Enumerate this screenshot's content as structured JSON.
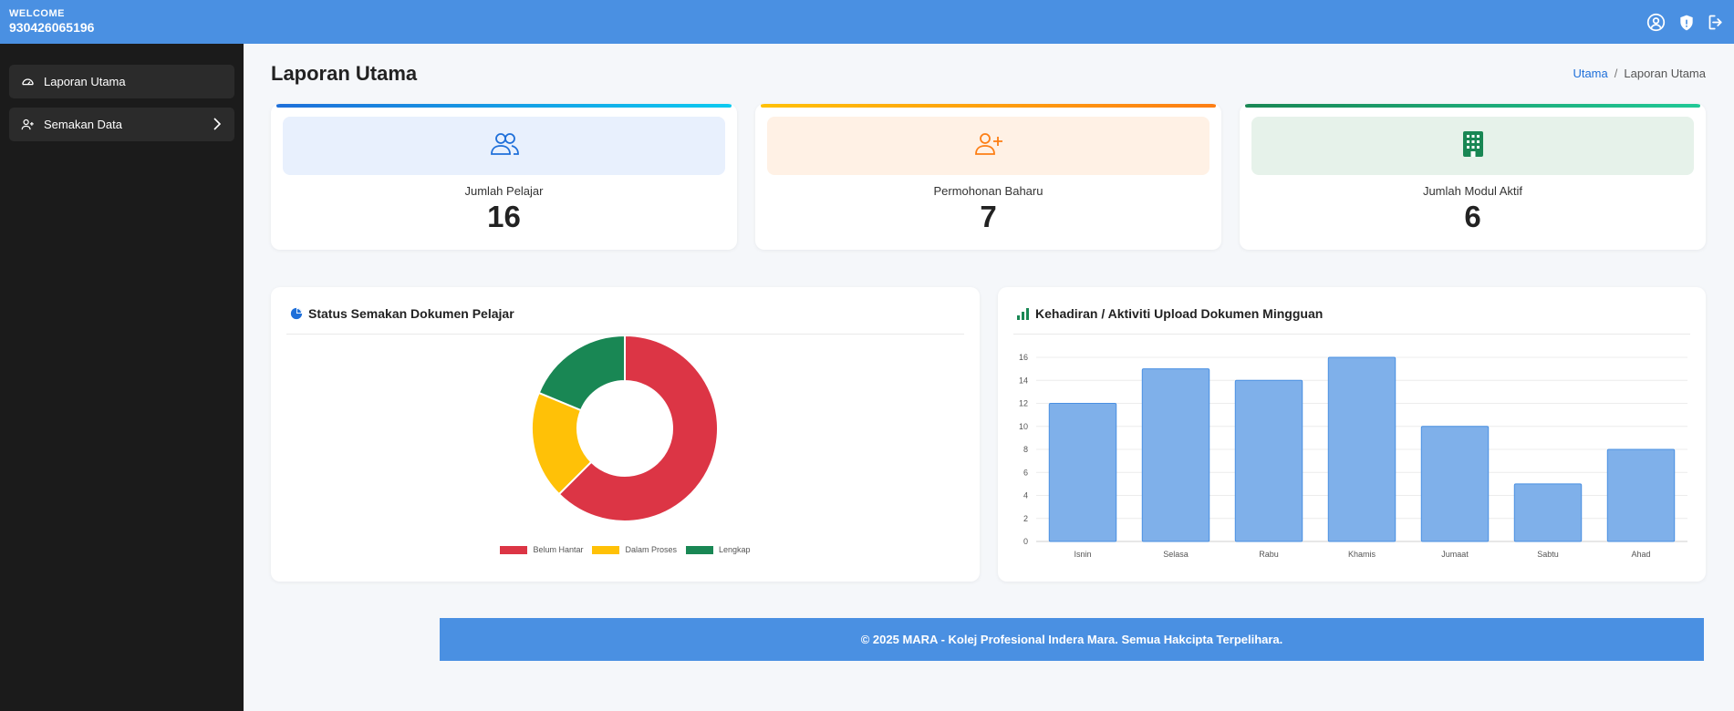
{
  "header": {
    "welcome_label": "WELCOME",
    "user_id": "930426065196",
    "icons": [
      "user-circle-icon",
      "shield-icon",
      "logout-icon"
    ],
    "background_color": "#4a90e2"
  },
  "sidebar": {
    "items": [
      {
        "label": "Laporan Utama",
        "icon": "dashboard-icon"
      },
      {
        "label": "Semakan Data",
        "icon": "user-plus-icon",
        "has_submenu": true
      }
    ]
  },
  "page": {
    "title": "Laporan Utama",
    "breadcrumb": {
      "home": "Utama",
      "separator": "/",
      "current": "Laporan Utama"
    }
  },
  "stats": [
    {
      "label": "Jumlah Pelajar",
      "value": "16",
      "icon": "users-icon",
      "accent": "#1e6fd9",
      "bg": "#e8f0fd"
    },
    {
      "label": "Permohonan Baharu",
      "value": "7",
      "icon": "user-plus-icon",
      "accent": "#fd7e14",
      "bg": "#fff1e5"
    },
    {
      "label": "Jumlah Modul Aktif",
      "value": "6",
      "icon": "building-icon",
      "accent": "#198754",
      "bg": "#e6f2ea"
    }
  ],
  "charts": {
    "status_title": "Status Semakan Dokumen Pelajar",
    "activity_title": "Kehadiran / Aktiviti Upload Dokumen Mingguan"
  },
  "chart_data": [
    {
      "type": "pie",
      "donut": true,
      "title": "Status Semakan Dokumen Pelajar",
      "categories": [
        "Belum Hantar",
        "Dalam Proses",
        "Lengkap"
      ],
      "values": [
        10,
        3,
        3
      ],
      "colors": [
        "#dc3545",
        "#ffc107",
        "#198754"
      ],
      "legend": "bottom"
    },
    {
      "type": "bar",
      "title": "Kehadiran / Aktiviti Upload Dokumen Mingguan",
      "categories": [
        "Isnin",
        "Selasa",
        "Rabu",
        "Khamis",
        "Jumaat",
        "Sabtu",
        "Ahad"
      ],
      "values": [
        12,
        15,
        14,
        16,
        10,
        5,
        8
      ],
      "ylim": [
        0,
        16
      ],
      "yticks": [
        0,
        2,
        4,
        6,
        8,
        10,
        12,
        14,
        16
      ],
      "grid": true,
      "bar_color": "#7fb0ea"
    }
  ],
  "footer": {
    "text": "© 2025 MARA - Kolej Profesional Indera Mara. Semua Hakcipta Terpelihara."
  }
}
